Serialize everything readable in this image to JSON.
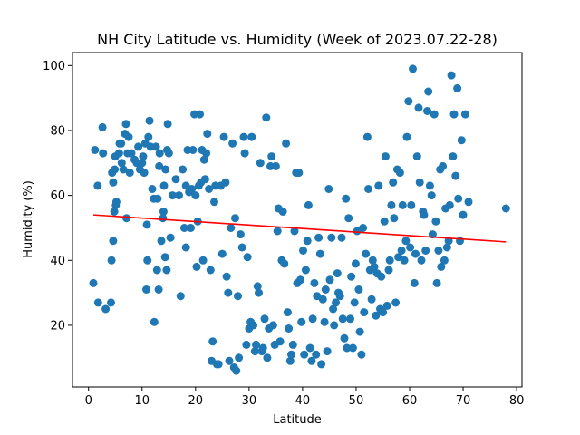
{
  "chart_data": {
    "type": "scatter",
    "title": "NH City Latitude vs. Humidity (Week of 2023.07.22-28)",
    "xlabel": "Latitude",
    "ylabel": "Humidity (%)",
    "xlim": [
      -3,
      81
    ],
    "ylim": [
      1,
      104
    ],
    "xticks": [
      0,
      10,
      20,
      30,
      40,
      50,
      60,
      70,
      80
    ],
    "yticks": [
      20,
      40,
      60,
      80,
      100
    ],
    "point_color": "#1f77b4",
    "regression_color": "#ff0000",
    "regression": {
      "x": [
        0.9,
        78
      ],
      "y": [
        54,
        45.7
      ]
    },
    "points": [
      [
        0.9,
        33
      ],
      [
        1.2,
        74
      ],
      [
        1.7,
        63
      ],
      [
        1.8,
        27
      ],
      [
        2.6,
        81
      ],
      [
        2.7,
        73
      ],
      [
        3.2,
        25
      ],
      [
        4.2,
        27
      ],
      [
        4.3,
        40
      ],
      [
        4.4,
        67
      ],
      [
        4.6,
        46
      ],
      [
        4.6,
        64
      ],
      [
        4.8,
        55
      ],
      [
        4.9,
        68
      ],
      [
        5.0,
        72
      ],
      [
        5.1,
        57
      ],
      [
        5.2,
        58
      ],
      [
        5.7,
        73
      ],
      [
        5.8,
        76
      ],
      [
        6.1,
        76
      ],
      [
        6.2,
        70
      ],
      [
        6.5,
        68
      ],
      [
        6.8,
        79
      ],
      [
        7.0,
        82
      ],
      [
        7.1,
        53
      ],
      [
        7.3,
        73
      ],
      [
        7.5,
        78
      ],
      [
        7.7,
        67
      ],
      [
        8.0,
        73
      ],
      [
        8.6,
        71
      ],
      [
        9.0,
        70
      ],
      [
        9.3,
        75
      ],
      [
        9.6,
        68
      ],
      [
        10.0,
        70
      ],
      [
        10.2,
        72
      ],
      [
        10.4,
        67
      ],
      [
        10.6,
        76
      ],
      [
        10.8,
        31
      ],
      [
        10.9,
        51
      ],
      [
        11.0,
        40
      ],
      [
        11.2,
        78
      ],
      [
        11.4,
        83
      ],
      [
        11.6,
        75
      ],
      [
        11.9,
        62
      ],
      [
        12.2,
        59
      ],
      [
        12.3,
        21
      ],
      [
        12.6,
        75
      ],
      [
        12.8,
        37
      ],
      [
        12.9,
        59
      ],
      [
        13.1,
        31
      ],
      [
        13.2,
        69
      ],
      [
        13.3,
        73
      ],
      [
        13.6,
        46
      ],
      [
        13.9,
        53
      ],
      [
        14.0,
        55
      ],
      [
        14.1,
        63
      ],
      [
        14.3,
        41
      ],
      [
        14.4,
        68
      ],
      [
        14.6,
        37
      ],
      [
        14.7,
        74
      ],
      [
        14.8,
        82
      ],
      [
        15.0,
        73
      ],
      [
        15.3,
        47
      ],
      [
        15.7,
        60
      ],
      [
        16.3,
        65
      ],
      [
        16.9,
        60
      ],
      [
        17.2,
        29
      ],
      [
        17.6,
        68
      ],
      [
        17.9,
        50
      ],
      [
        18.2,
        63
      ],
      [
        18.2,
        44
      ],
      [
        18.5,
        74
      ],
      [
        18.8,
        61
      ],
      [
        19.1,
        50
      ],
      [
        19.3,
        62
      ],
      [
        19.5,
        74
      ],
      [
        19.8,
        85
      ],
      [
        20.0,
        60
      ],
      [
        20.2,
        38
      ],
      [
        20.4,
        52
      ],
      [
        20.6,
        63
      ],
      [
        20.8,
        85
      ],
      [
        21.0,
        64
      ],
      [
        21.2,
        74
      ],
      [
        21.4,
        40
      ],
      [
        21.6,
        71
      ],
      [
        21.8,
        65
      ],
      [
        22.0,
        73
      ],
      [
        22.2,
        79
      ],
      [
        22.5,
        62
      ],
      [
        22.8,
        37
      ],
      [
        23.0,
        9
      ],
      [
        23.2,
        15
      ],
      [
        23.5,
        58
      ],
      [
        23.7,
        63
      ],
      [
        24.0,
        8
      ],
      [
        24.3,
        8
      ],
      [
        24.7,
        63
      ],
      [
        25.0,
        42
      ],
      [
        25.3,
        78
      ],
      [
        25.6,
        64
      ],
      [
        25.8,
        35
      ],
      [
        26.1,
        30
      ],
      [
        26.3,
        9
      ],
      [
        26.6,
        50
      ],
      [
        26.9,
        76
      ],
      [
        27.2,
        7
      ],
      [
        27.4,
        53
      ],
      [
        27.6,
        6
      ],
      [
        27.9,
        29
      ],
      [
        28.1,
        10
      ],
      [
        28.4,
        48
      ],
      [
        28.7,
        44
      ],
      [
        29.0,
        78
      ],
      [
        29.2,
        73
      ],
      [
        29.5,
        14
      ],
      [
        29.7,
        41
      ],
      [
        30.0,
        19
      ],
      [
        30.3,
        21
      ],
      [
        30.5,
        78
      ],
      [
        30.8,
        20
      ],
      [
        31.1,
        12
      ],
      [
        31.3,
        14
      ],
      [
        31.6,
        32
      ],
      [
        31.8,
        30
      ],
      [
        32.1,
        70
      ],
      [
        32.4,
        12
      ],
      [
        32.6,
        13
      ],
      [
        32.9,
        22
      ],
      [
        33.2,
        84
      ],
      [
        33.4,
        10
      ],
      [
        33.7,
        19
      ],
      [
        34.0,
        69
      ],
      [
        34.2,
        72
      ],
      [
        34.5,
        20
      ],
      [
        34.8,
        14
      ],
      [
        35.0,
        69
      ],
      [
        35.3,
        49
      ],
      [
        35.5,
        56
      ],
      [
        35.8,
        15
      ],
      [
        36.1,
        40
      ],
      [
        36.3,
        55
      ],
      [
        36.6,
        39
      ],
      [
        36.9,
        76
      ],
      [
        37.2,
        24
      ],
      [
        37.4,
        19
      ],
      [
        37.7,
        9
      ],
      [
        37.9,
        11
      ],
      [
        38.2,
        14
      ],
      [
        38.5,
        49
      ],
      [
        38.8,
        67
      ],
      [
        39.0,
        33
      ],
      [
        39.3,
        67
      ],
      [
        39.6,
        34
      ],
      [
        39.8,
        21
      ],
      [
        40.1,
        43
      ],
      [
        40.3,
        11
      ],
      [
        40.6,
        37
      ],
      [
        40.9,
        46
      ],
      [
        41.1,
        57
      ],
      [
        41.4,
        13
      ],
      [
        41.7,
        9
      ],
      [
        41.9,
        22
      ],
      [
        42.2,
        33
      ],
      [
        42.5,
        11
      ],
      [
        42.7,
        29
      ],
      [
        43.0,
        47
      ],
      [
        43.3,
        42
      ],
      [
        43.5,
        8
      ],
      [
        43.8,
        28
      ],
      [
        44.1,
        21
      ],
      [
        44.3,
        31
      ],
      [
        44.6,
        12
      ],
      [
        44.9,
        62
      ],
      [
        45.1,
        34
      ],
      [
        45.4,
        47
      ],
      [
        45.7,
        25
      ],
      [
        45.9,
        20
      ],
      [
        46.2,
        27
      ],
      [
        46.5,
        36
      ],
      [
        46.7,
        30
      ],
      [
        47.0,
        29
      ],
      [
        47.3,
        47
      ],
      [
        47.5,
        22
      ],
      [
        47.8,
        16
      ],
      [
        48.1,
        59
      ],
      [
        48.3,
        13
      ],
      [
        48.6,
        53
      ],
      [
        48.9,
        22
      ],
      [
        49.1,
        35
      ],
      [
        49.4,
        13
      ],
      [
        49.7,
        27
      ],
      [
        49.9,
        39
      ],
      [
        50.2,
        49
      ],
      [
        50.5,
        31
      ],
      [
        50.7,
        18
      ],
      [
        51.0,
        11
      ],
      [
        51.3,
        50
      ],
      [
        51.5,
        24
      ],
      [
        51.8,
        42
      ],
      [
        52.1,
        78
      ],
      [
        52.3,
        62
      ],
      [
        52.6,
        37
      ],
      [
        52.9,
        28
      ],
      [
        53.1,
        40
      ],
      [
        53.4,
        38
      ],
      [
        53.7,
        23
      ],
      [
        53.9,
        36
      ],
      [
        54.2,
        63
      ],
      [
        54.5,
        25
      ],
      [
        54.7,
        35
      ],
      [
        55.0,
        24
      ],
      [
        55.3,
        52
      ],
      [
        55.5,
        72
      ],
      [
        55.8,
        26
      ],
      [
        56.1,
        37
      ],
      [
        56.3,
        40
      ],
      [
        56.6,
        57
      ],
      [
        56.9,
        64
      ],
      [
        57.1,
        53
      ],
      [
        57.4,
        27
      ],
      [
        57.7,
        68
      ],
      [
        57.9,
        41
      ],
      [
        58.2,
        67
      ],
      [
        58.5,
        43
      ],
      [
        58.7,
        57
      ],
      [
        59.0,
        40
      ],
      [
        59.3,
        46
      ],
      [
        59.5,
        78
      ],
      [
        59.8,
        89
      ],
      [
        60.1,
        44
      ],
      [
        60.3,
        57
      ],
      [
        60.6,
        99
      ],
      [
        60.9,
        33
      ],
      [
        61.1,
        42
      ],
      [
        61.4,
        72
      ],
      [
        61.7,
        87
      ],
      [
        61.9,
        64
      ],
      [
        62.2,
        40
      ],
      [
        62.5,
        55
      ],
      [
        62.7,
        54
      ],
      [
        63.0,
        43
      ],
      [
        63.3,
        86
      ],
      [
        63.5,
        92
      ],
      [
        63.8,
        63
      ],
      [
        64.1,
        60
      ],
      [
        64.3,
        48
      ],
      [
        64.6,
        85
      ],
      [
        64.9,
        52
      ],
      [
        65.1,
        33
      ],
      [
        65.4,
        43
      ],
      [
        65.7,
        68
      ],
      [
        65.9,
        38
      ],
      [
        66.2,
        69
      ],
      [
        66.5,
        40
      ],
      [
        66.7,
        56
      ],
      [
        67.0,
        44
      ],
      [
        67.3,
        46
      ],
      [
        67.5,
        57
      ],
      [
        67.8,
        97
      ],
      [
        68.1,
        72
      ],
      [
        68.3,
        85
      ],
      [
        68.6,
        66
      ],
      [
        68.9,
        93
      ],
      [
        69.1,
        59
      ],
      [
        69.4,
        46
      ],
      [
        69.7,
        77
      ],
      [
        70.0,
        54
      ],
      [
        70.4,
        85
      ],
      [
        71.0,
        58
      ],
      [
        78.0,
        56
      ]
    ]
  }
}
